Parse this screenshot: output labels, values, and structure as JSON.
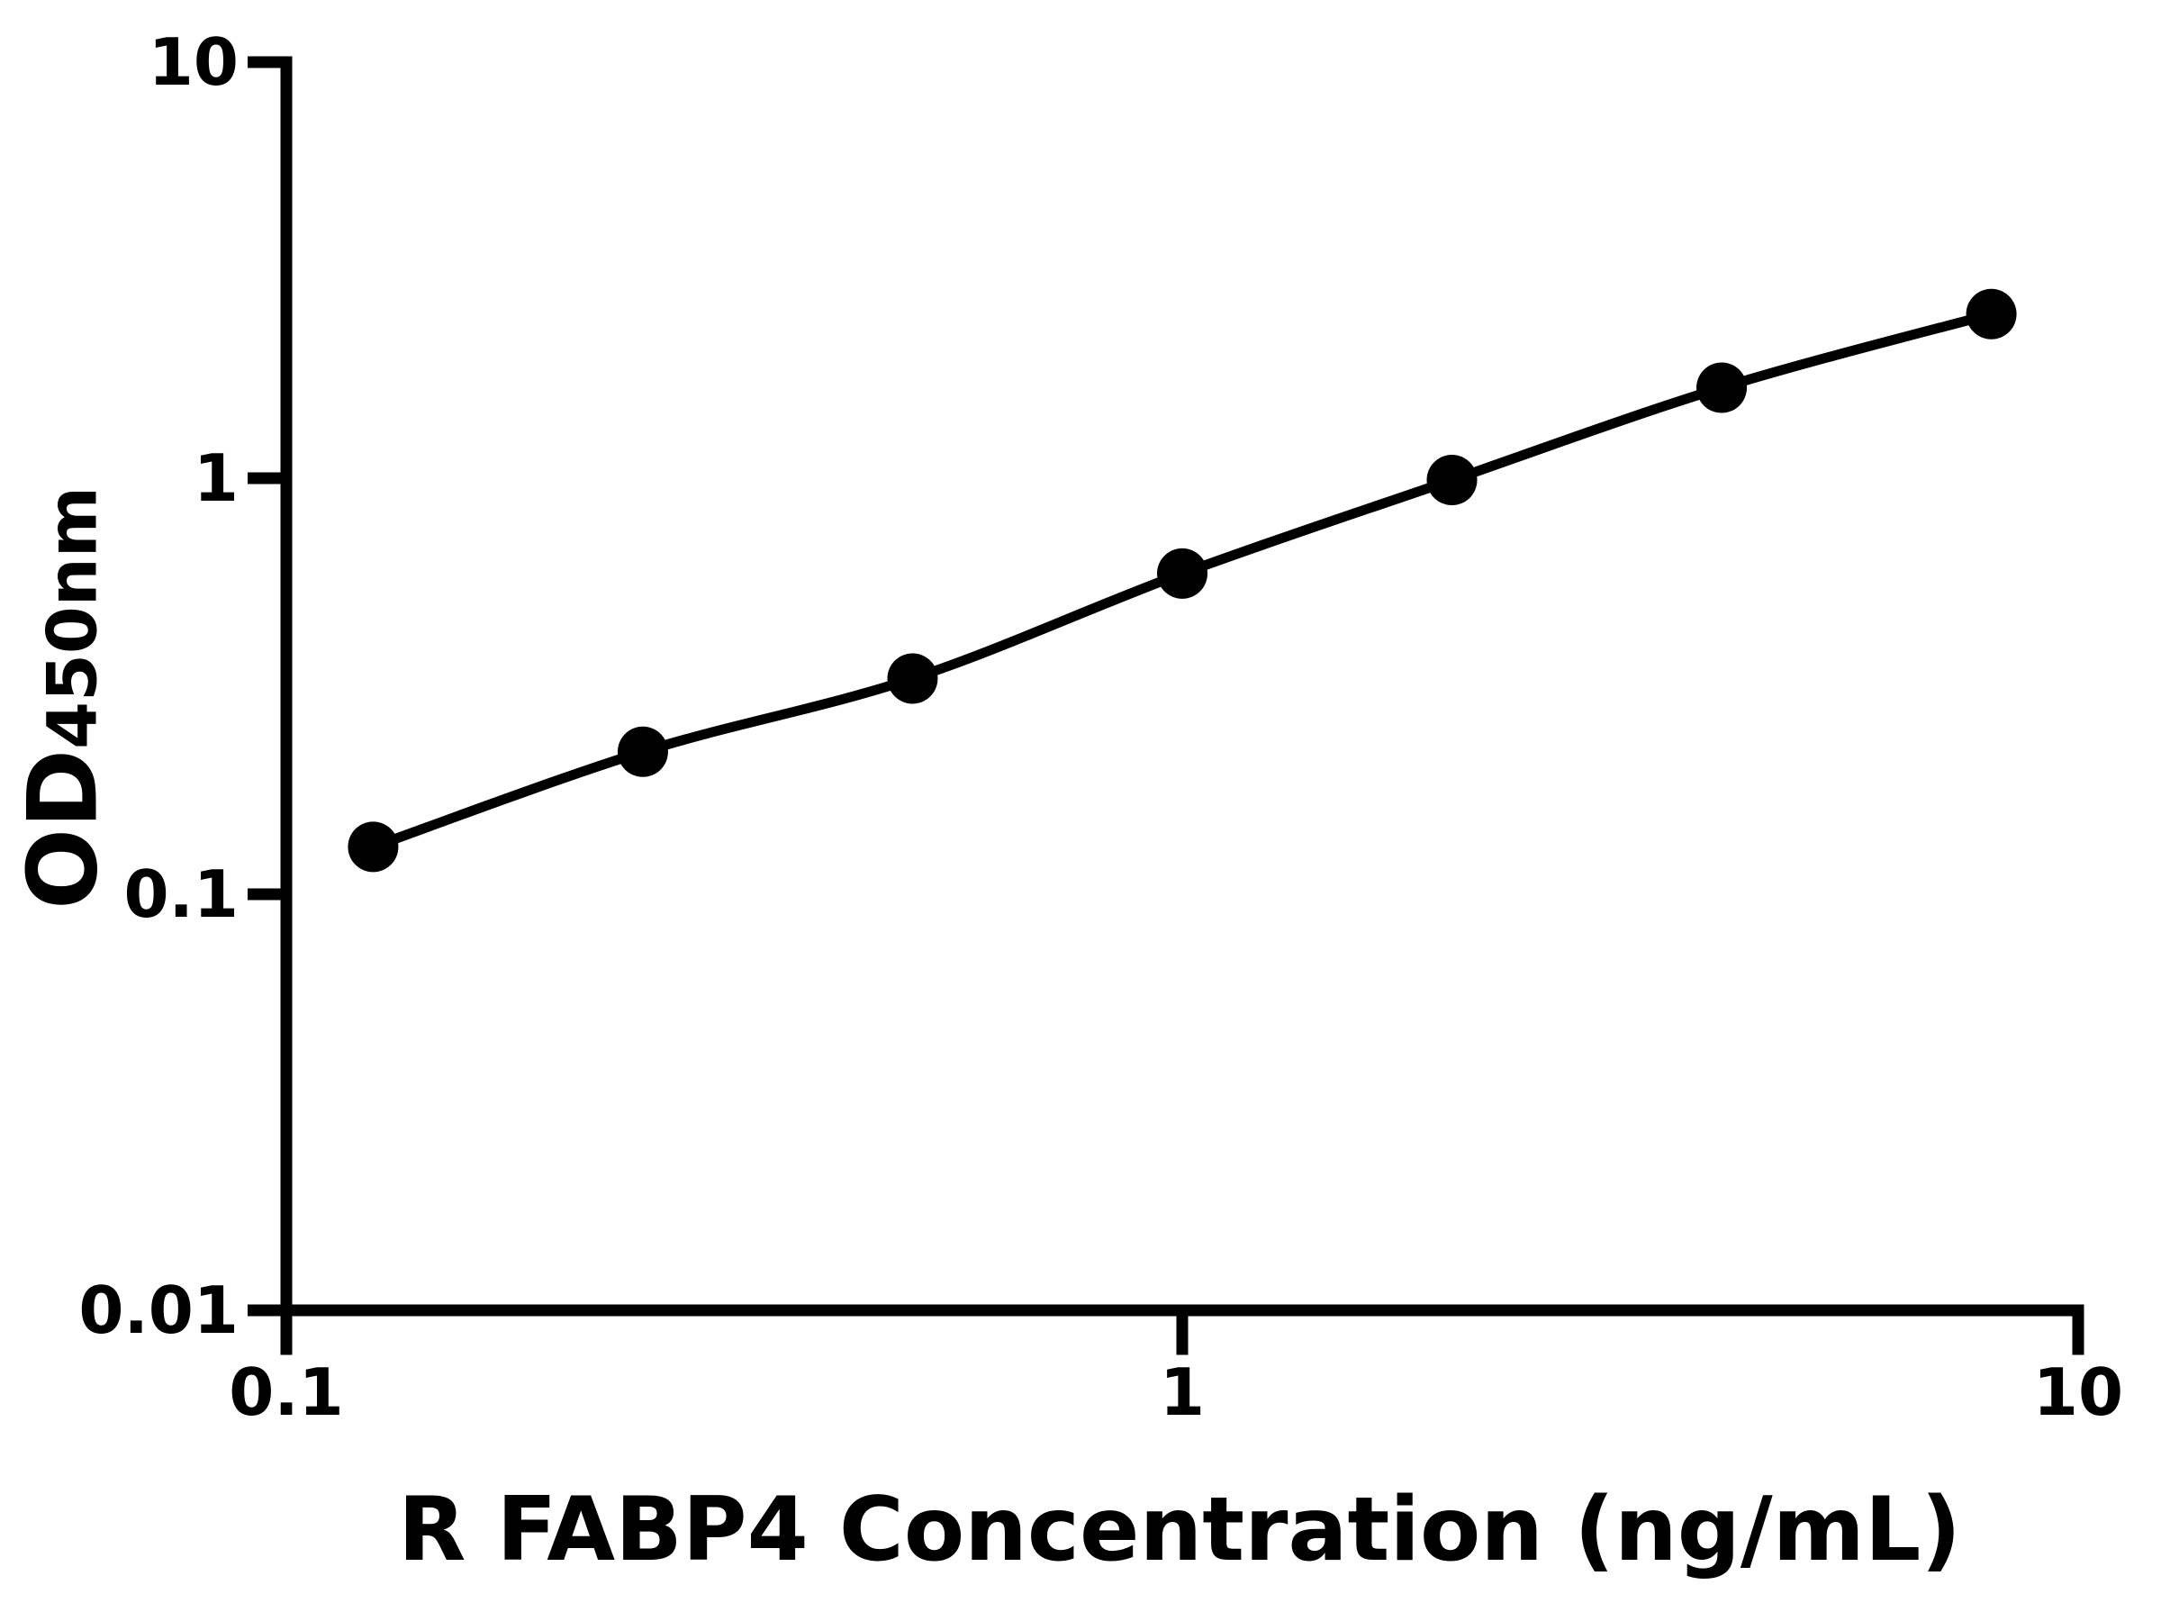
{
  "chart_data": {
    "type": "scatter",
    "title": "",
    "xlabel": "R FABP4 Concentration (ng/mL)",
    "ylabel_main": "OD",
    "ylabel_sub": "450nm",
    "x": [
      0.125,
      0.25,
      0.5,
      1,
      2,
      4,
      8
    ],
    "y": [
      0.13,
      0.22,
      0.33,
      0.59,
      0.99,
      1.65,
      2.48
    ],
    "x_scale": "log",
    "y_scale": "log",
    "xlim": [
      0.1,
      10
    ],
    "ylim": [
      0.01,
      10
    ],
    "x_ticks": [
      0.1,
      1,
      10
    ],
    "x_tick_labels": [
      "0.1",
      "1",
      "10"
    ],
    "y_ticks": [
      10,
      1,
      0.1,
      0.01
    ],
    "y_tick_labels": [
      "10",
      "1",
      "0.1",
      "0.01"
    ],
    "grid": false,
    "legend": false,
    "line_color": "#000000",
    "marker_color": "#000000",
    "axis_color": "#000000",
    "background_color": "#ffffff"
  }
}
